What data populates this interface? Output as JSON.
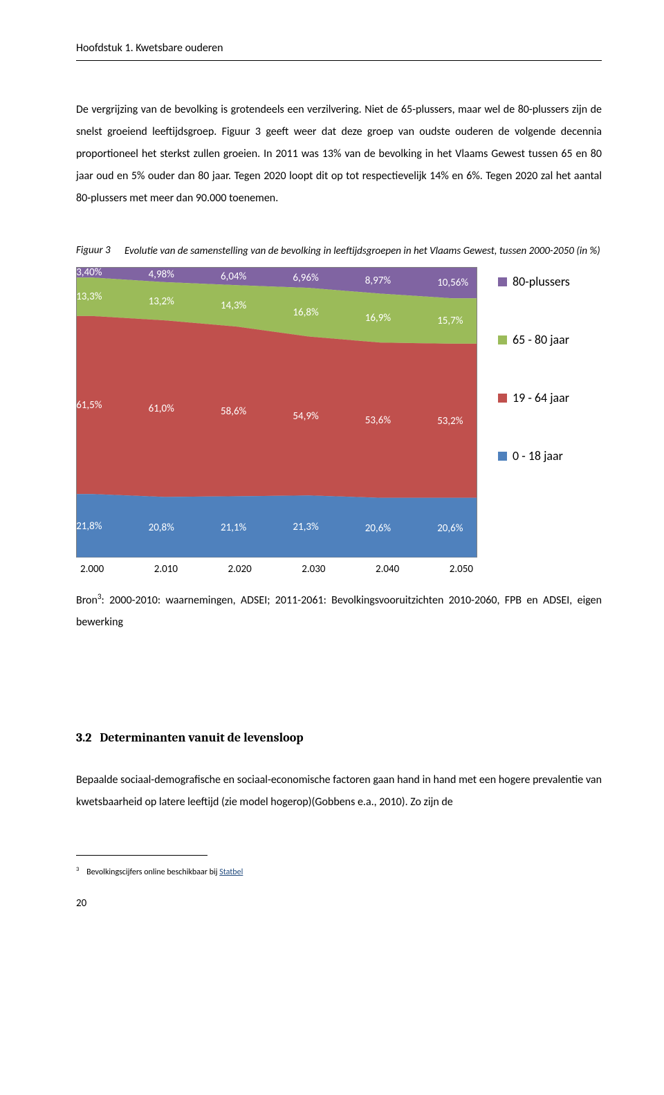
{
  "chapter_header": "Hoofdstuk 1. Kwetsbare ouderen",
  "para1": "De vergrijzing van de bevolking is grotendeels een verzilvering. Niet de 65-plussers, maar wel de 80-plussers zijn de snelst groeiend leeftijdsgroep. Figuur 3 geeft weer dat deze groep van oudste ouderen de volgende decennia proportioneel het sterkst zullen groeien. In 2011 was 13% van de bevolking in het Vlaams Gewest tussen 65 en 80 jaar oud en 5% ouder dan 80 jaar. Tegen 2020 loopt dit op tot respectievelijk 14% en 6%. Tegen 2020 zal het aantal 80-plussers met meer dan 90.000 toenemen.",
  "fig_label": "Figuur 3",
  "fig_caption": "Evolutie van de samenstelling van de bevolking in leeftijdsgroepen in het Vlaams Gewest, tussen 2000-2050 (in %)",
  "chart": {
    "type": "stacked-area",
    "categories": [
      "2.000",
      "2.010",
      "2.020",
      "2.030",
      "2.040",
      "2.050"
    ],
    "x_positions_pct": [
      4,
      22,
      40,
      58,
      76,
      94
    ],
    "series": [
      {
        "name": "80-plussers",
        "color": "#8064a2",
        "values": [
          "3,40%",
          "4,98%",
          "6,04%",
          "6,96%",
          "8,97%",
          "10,56%"
        ]
      },
      {
        "name": "65 - 80 jaar",
        "color": "#9bbb59",
        "values": [
          "13,3%",
          "13,2%",
          "14,3%",
          "16,8%",
          "16,9%",
          "15,7%"
        ]
      },
      {
        "name": "19 - 64 jaar",
        "color": "#c0504d",
        "values": [
          "61,5%",
          "61,0%",
          "58,6%",
          "54,9%",
          "53,6%",
          "53,2%"
        ]
      },
      {
        "name": "0 - 18 jaar",
        "color": "#4f81bd",
        "values": [
          "21,8%",
          "20,8%",
          "21,1%",
          "21,3%",
          "20,6%",
          "20,6%"
        ]
      }
    ],
    "cum_top_pct": {
      "level0": [
        0,
        0,
        0,
        0,
        0,
        0
      ],
      "level1": [
        3.4,
        4.98,
        6.04,
        6.96,
        8.97,
        10.56
      ],
      "level2": [
        16.7,
        18.18,
        20.34,
        23.76,
        25.87,
        26.26
      ],
      "level3": [
        78.2,
        79.18,
        78.94,
        78.66,
        79.47,
        79.46
      ],
      "level4": [
        100,
        100,
        100,
        100,
        100,
        100
      ]
    }
  },
  "source_pre": "Bron",
  "source_sup": "3",
  "source_post": ": 2000-2010: waarnemingen, ADSEI; 2011-2061: Bevolkingsvooruitzichten 2010-2060, FPB en ADSEI, eigen bewerking",
  "section_num": "3.2",
  "section_title": "Determinanten vanuit de levensloop",
  "para2": "Bepaalde sociaal-demografische en sociaal-economische factoren gaan hand in hand met een hogere prevalentie van kwetsbaarheid op latere leeftijd (zie model hogerop)(Gobbens e.a., 2010). Zo zijn de",
  "footnote_num": "3",
  "footnote_text": "Bevolkingscijfers online beschikbaar bij ",
  "footnote_link": "Statbel",
  "page_number": "20"
}
